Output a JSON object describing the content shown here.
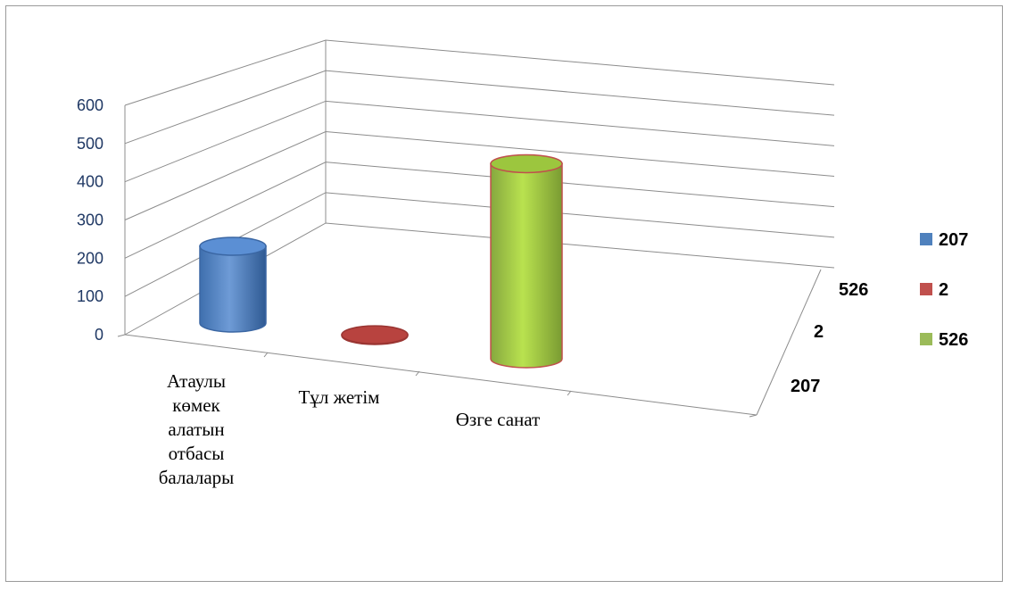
{
  "chart_data": {
    "type": "bar",
    "style": "3d-cylinder",
    "categories": [
      "Атаулы көмек алатын отбасы балалары",
      "Тұл жетім",
      "Өзге санат"
    ],
    "series": [
      {
        "name": "207",
        "values": [
          207,
          null,
          null
        ],
        "color": "#4f81bd"
      },
      {
        "name": "2",
        "values": [
          null,
          2,
          null
        ],
        "color": "#c0504d"
      },
      {
        "name": "526",
        "values": [
          null,
          null,
          526
        ],
        "color": "#9bbb59"
      }
    ],
    "ylim": [
      0,
      600
    ],
    "yticks": [
      0,
      100,
      200,
      300,
      400,
      500,
      600
    ],
    "depth_labels": [
      "207",
      "2",
      "526"
    ],
    "grid": true,
    "legend": "right",
    "title": "",
    "xlabel": "",
    "ylabel": ""
  }
}
